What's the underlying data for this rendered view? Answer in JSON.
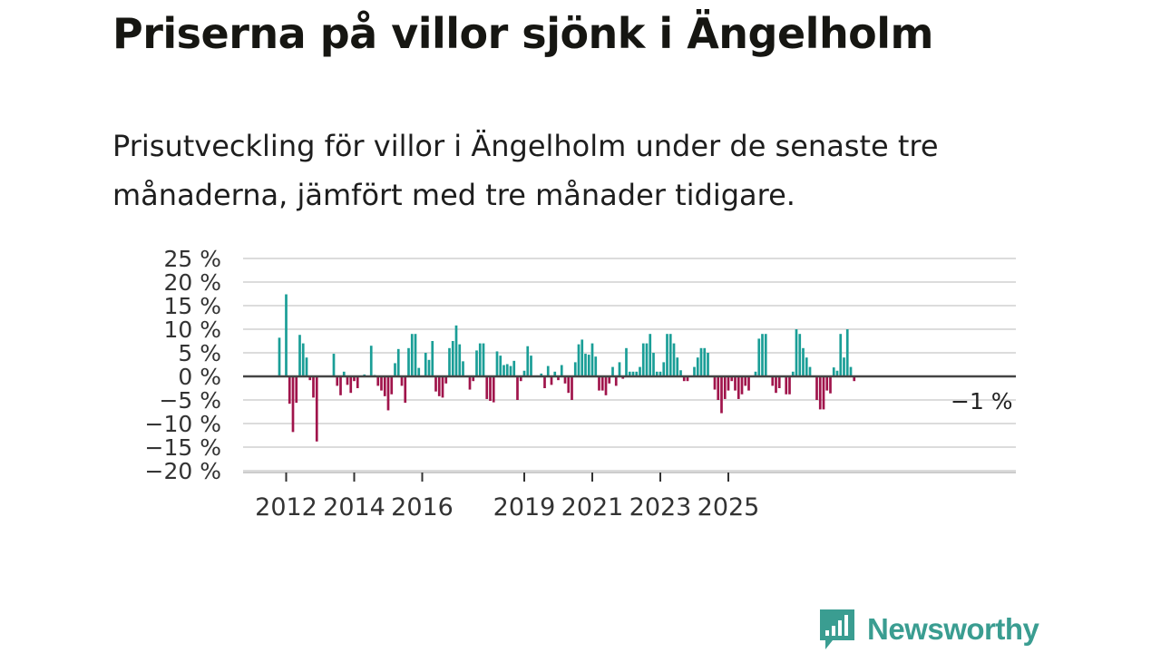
{
  "header": {
    "title": "Priserna på villor sjönk i Ängelholm",
    "subtitle": "Prisutveckling för villor i Ängelholm under de senaste tre månaderna, jämfört med tre månader tidigare."
  },
  "brand": {
    "name": "Newsworthy"
  },
  "colors": {
    "positive": "#1a9e97",
    "negative": "#a0144b",
    "grid": "#dcdcdc",
    "zero_line": "#444444",
    "brand": "#3a9d91"
  },
  "chart_data": {
    "type": "bar",
    "title": "Prisutveckling för villor i Ängelholm",
    "unit": "%",
    "ylim": [
      -20,
      25
    ],
    "yticks": [
      25,
      20,
      15,
      10,
      5,
      0,
      -5,
      -10,
      -15,
      -20
    ],
    "ytick_labels": [
      "25 %",
      "20 %",
      "15 %",
      "10 %",
      "5 %",
      "0 %",
      "−5 %",
      "−10 %",
      "−15 %",
      "−20 %"
    ],
    "xtick_labels": [
      "2012",
      "2014",
      "2016",
      "2019",
      "2021",
      "2023",
      "2025"
    ],
    "xtick_index": [
      2,
      22,
      42,
      72,
      92,
      112,
      132
    ],
    "last_value_label": "−1 %",
    "values": [
      8.2,
      0,
      17.4,
      -5.8,
      -11.8,
      -5.6,
      8.8,
      7.0,
      4.0,
      -0.8,
      -4.5,
      -13.8,
      0,
      0,
      0,
      0,
      4.8,
      -2.0,
      -4.0,
      1.0,
      -1.8,
      -3.5,
      -1.0,
      -2.5,
      0,
      0.4,
      0,
      6.5,
      0.3,
      -2.0,
      -3.0,
      -4.2,
      -7.2,
      -3.8,
      2.8,
      5.8,
      -2.0,
      -5.6,
      6.0,
      9.0,
      9.0,
      1.8,
      0,
      5.0,
      3.5,
      7.5,
      -3.2,
      -4.2,
      -4.5,
      -1.5,
      6.0,
      7.5,
      10.8,
      6.8,
      3.2,
      0,
      -2.8,
      -1.0,
      5.5,
      7.0,
      7.0,
      -4.8,
      -5.2,
      -5.5,
      5.3,
      4.4,
      2.4,
      2.6,
      2.2,
      3.3,
      -5.0,
      -1.0,
      1.2,
      6.4,
      4.4,
      0,
      0.2,
      0.6,
      -2.5,
      2.2,
      -1.8,
      1.0,
      -0.8,
      2.4,
      -1.5,
      -3.5,
      -5.0,
      3.0,
      6.8,
      7.8,
      4.8,
      4.6,
      7.0,
      4.2,
      -3.0,
      -3.0,
      -4.0,
      -1.5,
      2.0,
      -2.0,
      3.0,
      -0.5,
      6.0,
      1.0,
      1.0,
      1.0,
      2.0,
      7.0,
      7.0,
      9.0,
      5.0,
      1.0,
      1.0,
      3.0,
      9.0,
      9.0,
      7.0,
      4.0,
      1.3,
      -1.0,
      -1.0,
      0,
      2.0,
      4.0,
      6.0,
      6.0,
      5.0,
      0,
      -2.8,
      -5.0,
      -7.8,
      -4.8,
      -3.0,
      -1.0,
      -3.0,
      -4.8,
      -3.8,
      -2.0,
      -3.0,
      0,
      1.0,
      8.0,
      9.0,
      9.0,
      0,
      -2.0,
      -3.5,
      -2.5,
      0,
      -3.8,
      -3.8,
      1.0,
      10.0,
      9.0,
      6.0,
      4.0,
      2.0,
      0,
      -5.0,
      -7.0,
      -7.0,
      -3.0,
      -3.6,
      1.9,
      1.2,
      9.0,
      4.0,
      10.0,
      2.0,
      -1.0
    ]
  }
}
